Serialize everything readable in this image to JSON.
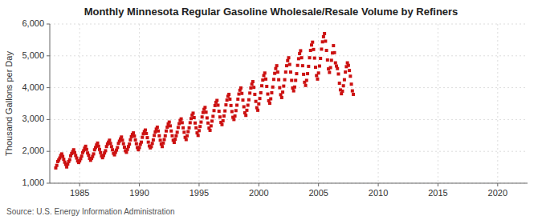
{
  "chart_data": {
    "type": "scatter",
    "title": "Monthly Minnesota Regular Gasoline Wholesale/Resale Volume by Refiners",
    "ylabel": "Thousand Gallons per Day",
    "annotations": [
      "Source: U.S. Energy Information Administration"
    ],
    "color": "#CC1111",
    "marker": "square",
    "grid": true,
    "xlim": [
      1982.5,
      2022.5
    ],
    "xticks": [
      1985,
      1990,
      1995,
      2000,
      2005,
      2010,
      2015,
      2020
    ],
    "ylim": [
      1000,
      6000
    ],
    "yticks": [
      {
        "value": 1000,
        "label": "1,000"
      },
      {
        "value": 2000,
        "label": "2,000"
      },
      {
        "value": 3000,
        "label": "3,000"
      },
      {
        "value": 4000,
        "label": "4,000"
      },
      {
        "value": 5000,
        "label": "5,000"
      },
      {
        "value": 6000,
        "label": "6,000"
      }
    ],
    "x": [
      1983.0,
      1983.083,
      1983.167,
      1983.25,
      1983.333,
      1983.417,
      1983.5,
      1983.583,
      1983.667,
      1983.75,
      1983.833,
      1983.917,
      1984.0,
      1984.083,
      1984.167,
      1984.25,
      1984.333,
      1984.417,
      1984.5,
      1984.583,
      1984.667,
      1984.75,
      1984.833,
      1984.917,
      1985.0,
      1985.083,
      1985.167,
      1985.25,
      1985.333,
      1985.417,
      1985.5,
      1985.583,
      1985.667,
      1985.75,
      1985.833,
      1985.917,
      1986.0,
      1986.083,
      1986.167,
      1986.25,
      1986.333,
      1986.417,
      1986.5,
      1986.583,
      1986.667,
      1986.75,
      1986.833,
      1986.917,
      1987.0,
      1987.083,
      1987.167,
      1987.25,
      1987.333,
      1987.417,
      1987.5,
      1987.583,
      1987.667,
      1987.75,
      1987.833,
      1987.917,
      1988.0,
      1988.083,
      1988.167,
      1988.25,
      1988.333,
      1988.417,
      1988.5,
      1988.583,
      1988.667,
      1988.75,
      1988.833,
      1988.917,
      1989.0,
      1989.083,
      1989.167,
      1989.25,
      1989.333,
      1989.417,
      1989.5,
      1989.583,
      1989.667,
      1989.75,
      1989.833,
      1989.917,
      1990.0,
      1990.083,
      1990.167,
      1990.25,
      1990.333,
      1990.417,
      1990.5,
      1990.583,
      1990.667,
      1990.75,
      1990.833,
      1990.917,
      1991.0,
      1991.083,
      1991.167,
      1991.25,
      1991.333,
      1991.417,
      1991.5,
      1991.583,
      1991.667,
      1991.75,
      1991.833,
      1991.917,
      1992.0,
      1992.083,
      1992.167,
      1992.25,
      1992.333,
      1992.417,
      1992.5,
      1992.583,
      1992.667,
      1992.75,
      1992.833,
      1992.917,
      1993.0,
      1993.083,
      1993.167,
      1993.25,
      1993.333,
      1993.417,
      1993.5,
      1993.583,
      1993.667,
      1993.75,
      1993.833,
      1993.917,
      1994.0,
      1994.083,
      1994.167,
      1994.25,
      1994.333,
      1994.417,
      1994.5,
      1994.583,
      1994.667,
      1994.75,
      1994.833,
      1994.917,
      1995.0,
      1995.083,
      1995.167,
      1995.25,
      1995.333,
      1995.417,
      1995.5,
      1995.583,
      1995.667,
      1995.75,
      1995.833,
      1995.917,
      1996.0,
      1996.083,
      1996.167,
      1996.25,
      1996.333,
      1996.417,
      1996.5,
      1996.583,
      1996.667,
      1996.75,
      1996.833,
      1996.917,
      1997.0,
      1997.083,
      1997.167,
      1997.25,
      1997.333,
      1997.417,
      1997.5,
      1997.583,
      1997.667,
      1997.75,
      1997.833,
      1997.917,
      1998.0,
      1998.083,
      1998.167,
      1998.25,
      1998.333,
      1998.417,
      1998.5,
      1998.583,
      1998.667,
      1998.75,
      1998.833,
      1998.917,
      1999.0,
      1999.083,
      1999.167,
      1999.25,
      1999.333,
      1999.417,
      1999.5,
      1999.583,
      1999.667,
      1999.75,
      1999.833,
      1999.917,
      2000.0,
      2000.083,
      2000.167,
      2000.25,
      2000.333,
      2000.417,
      2000.5,
      2000.583,
      2000.667,
      2000.75,
      2000.833,
      2000.917,
      2001.0,
      2001.083,
      2001.167,
      2001.25,
      2001.333,
      2001.417,
      2001.5,
      2001.583,
      2001.667,
      2001.75,
      2001.833,
      2001.917,
      2002.0,
      2002.083,
      2002.167,
      2002.25,
      2002.333,
      2002.417,
      2002.5,
      2002.583,
      2002.667,
      2002.75,
      2002.833,
      2002.917,
      2003.0,
      2003.083,
      2003.167,
      2003.25,
      2003.333,
      2003.417,
      2003.5,
      2003.583,
      2003.667,
      2003.75,
      2003.833,
      2003.917,
      2004.0,
      2004.083,
      2004.167,
      2004.25,
      2004.333,
      2004.417,
      2004.5,
      2004.583,
      2004.667,
      2004.75,
      2004.833,
      2004.917,
      2005.0,
      2005.083,
      2005.167,
      2005.25,
      2005.333,
      2005.417,
      2005.5,
      2005.583,
      2005.667,
      2005.75,
      2005.833,
      2005.917,
      2006.0,
      2006.083,
      2006.167,
      2006.25,
      2006.333,
      2006.417,
      2006.5,
      2006.583,
      2006.667,
      2006.75,
      2006.833,
      2006.917,
      2007.0,
      2007.083,
      2007.167,
      2007.25,
      2007.333,
      2007.417,
      2007.5,
      2007.583,
      2007.667,
      2007.75,
      2007.833,
      2007.917
    ],
    "values": [
      1480,
      1560,
      1680,
      1730,
      1790,
      1870,
      1920,
      1840,
      1750,
      1660,
      1590,
      1510,
      1600,
      1680,
      1740,
      1860,
      1930,
      1990,
      2050,
      1960,
      1870,
      1790,
      1700,
      1650,
      1700,
      1770,
      1850,
      1960,
      2020,
      2100,
      2160,
      2060,
      1950,
      1880,
      1780,
      1720,
      1780,
      1840,
      1920,
      2050,
      2120,
      2200,
      2260,
      2160,
      2060,
      1960,
      1860,
      1800,
      1870,
      1950,
      2020,
      2150,
      2230,
      2290,
      2350,
      2250,
      2150,
      2050,
      1940,
      1890,
      1970,
      2040,
      2120,
      2250,
      2320,
      2390,
      2450,
      2350,
      2240,
      2130,
      2020,
      1970,
      2060,
      2150,
      2230,
      2360,
      2460,
      2530,
      2580,
      2480,
      2360,
      2240,
      2120,
      2050,
      2120,
      2220,
      2290,
      2440,
      2550,
      2620,
      2670,
      2560,
      2430,
      2290,
      2170,
      2110,
      2150,
      2250,
      2360,
      2500,
      2610,
      2700,
      2760,
      2640,
      2490,
      2350,
      2230,
      2150,
      2260,
      2370,
      2490,
      2640,
      2760,
      2860,
      2920,
      2800,
      2640,
      2490,
      2350,
      2280,
      2380,
      2490,
      2600,
      2750,
      2870,
      2970,
      3020,
      2900,
      2740,
      2600,
      2440,
      2370,
      2490,
      2620,
      2740,
      2900,
      3030,
      3140,
      3200,
      3060,
      2890,
      2740,
      2580,
      2500,
      2650,
      2780,
      2920,
      3080,
      3220,
      3320,
      3380,
      3230,
      3050,
      2890,
      2730,
      2660,
      2800,
      2950,
      3100,
      3280,
      3440,
      3540,
      3600,
      3450,
      3260,
      3080,
      2910,
      2840,
      2960,
      3110,
      3270,
      3460,
      3610,
      3730,
      3790,
      3640,
      3440,
      3250,
      3070,
      3000,
      3110,
      3280,
      3450,
      3640,
      3800,
      3920,
      3990,
      3820,
      3610,
      3400,
      3210,
      3130,
      3290,
      3450,
      3620,
      3830,
      3990,
      4110,
      4190,
      4010,
      3790,
      3570,
      3370,
      3290,
      3490,
      3660,
      3840,
      4060,
      4240,
      4380,
      4460,
      4270,
      4040,
      3800,
      3590,
      3510,
      3650,
      3840,
      4020,
      4260,
      4450,
      4600,
      4690,
      4490,
      4250,
      4000,
      3780,
      3690,
      3860,
      4050,
      4250,
      4490,
      4690,
      4850,
      4940,
      4730,
      4490,
      4230,
      3990,
      3900,
      4020,
      4230,
      4440,
      4700,
      4910,
      5070,
      5160,
      4940,
      4690,
      4420,
      4170,
      4070,
      4230,
      4440,
      4670,
      4940,
      5170,
      5340,
      5430,
      5200,
      4930,
      4640,
      4380,
      4270,
      4460,
      4680,
      4920,
      5210,
      5440,
      5600,
      5700,
      5460,
      5170,
      4870,
      4590,
      4480,
      4630,
      4860,
      5090,
      5320,
      5100,
      4780,
      4680,
      4600,
      4430,
      4140,
      3930,
      3810,
      3890,
      4060,
      4250,
      4490,
      4660,
      4780,
      4700,
      4540,
      4360,
      4110,
      3900,
      3790
    ]
  }
}
